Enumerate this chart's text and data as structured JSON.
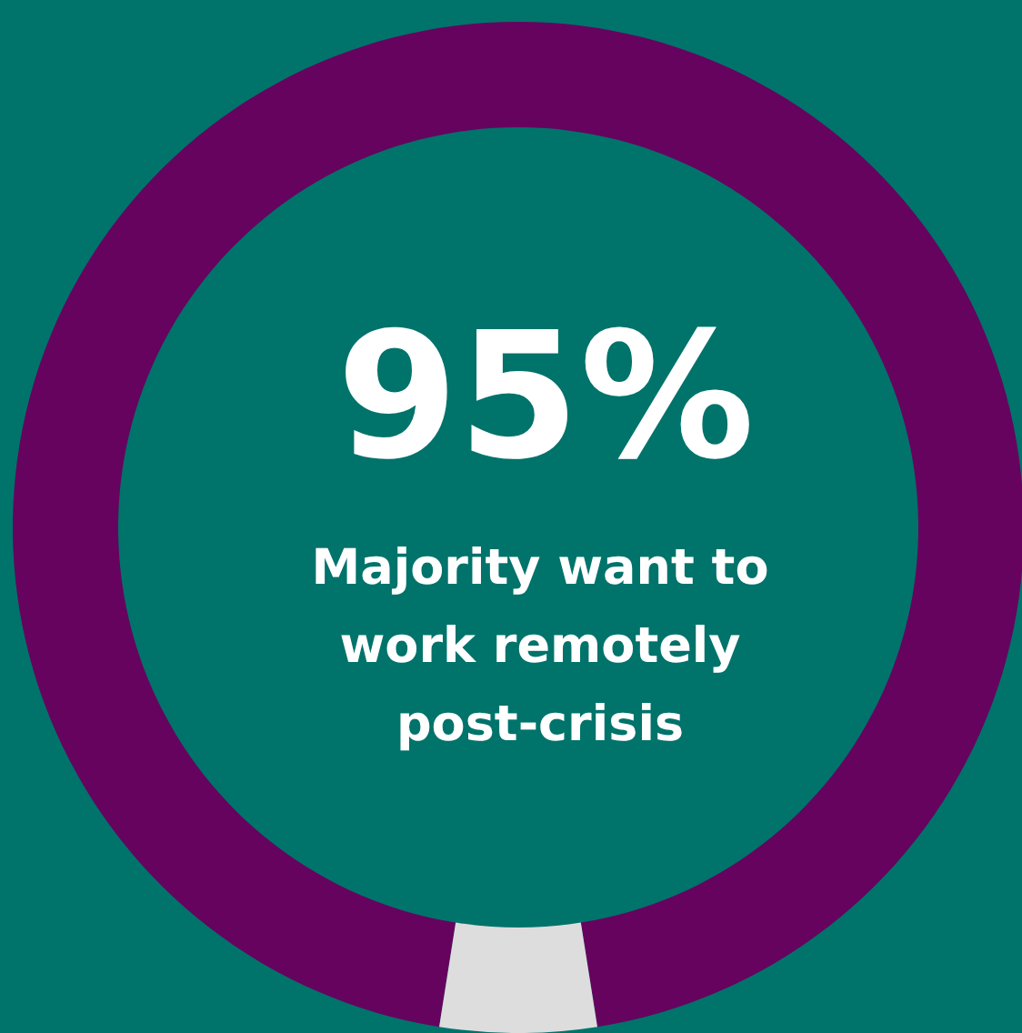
{
  "chart_data": {
    "type": "donut",
    "categories": [
      null,
      null
    ],
    "values": [
      95,
      5
    ],
    "colors": [
      "#66035e",
      "#dddddd"
    ],
    "value_labels": [
      "95%",
      null
    ],
    "annotations": [
      "Majority want to work remotely post-crisis"
    ]
  }
}
